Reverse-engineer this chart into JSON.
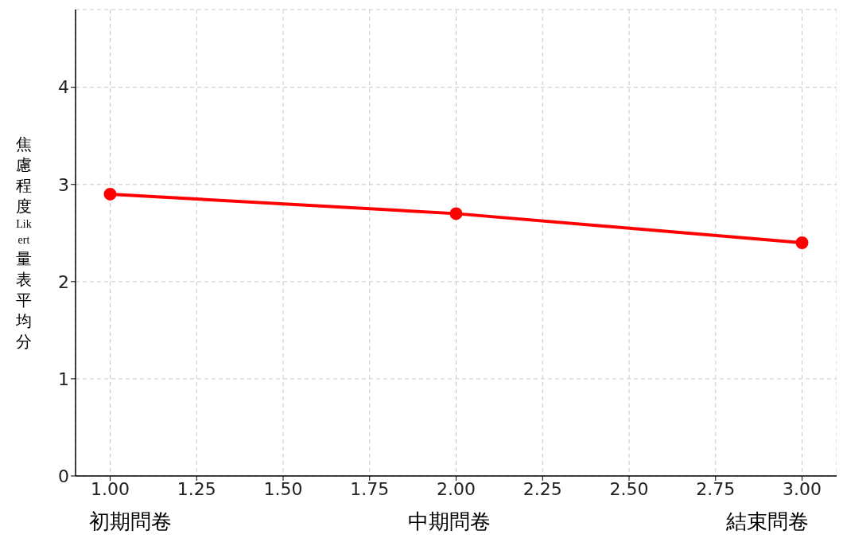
{
  "chart_data": {
    "type": "line",
    "ylabel": "焦慮程度Likert量表平均分",
    "x": [
      1,
      2,
      3
    ],
    "series": [
      {
        "color": "#ff0000",
        "values": [
          2.9,
          2.7,
          2.4
        ]
      }
    ],
    "xlim": [
      0.9,
      3.1
    ],
    "xticks": [
      {
        "value": 1,
        "label": "1.00"
      },
      {
        "value": 1.25,
        "label": "1.25"
      },
      {
        "value": 1.5,
        "label": "1.50"
      },
      {
        "value": 1.75,
        "label": "1.75"
      },
      {
        "value": 2,
        "label": "2.00"
      },
      {
        "value": 2.25,
        "label": "2.25"
      },
      {
        "value": 2.5,
        "label": "2.50"
      },
      {
        "value": 2.75,
        "label": "2.75"
      },
      {
        "value": 3,
        "label": "3.00"
      }
    ],
    "ylim": [
      0,
      4.8
    ],
    "yticks": [
      0,
      1,
      2,
      3,
      4
    ],
    "grid": true,
    "marker": "circle",
    "line_style": "solid",
    "legend": false,
    "annotations": [
      "初期問卷",
      "中期問卷",
      "結束問卷"
    ]
  }
}
